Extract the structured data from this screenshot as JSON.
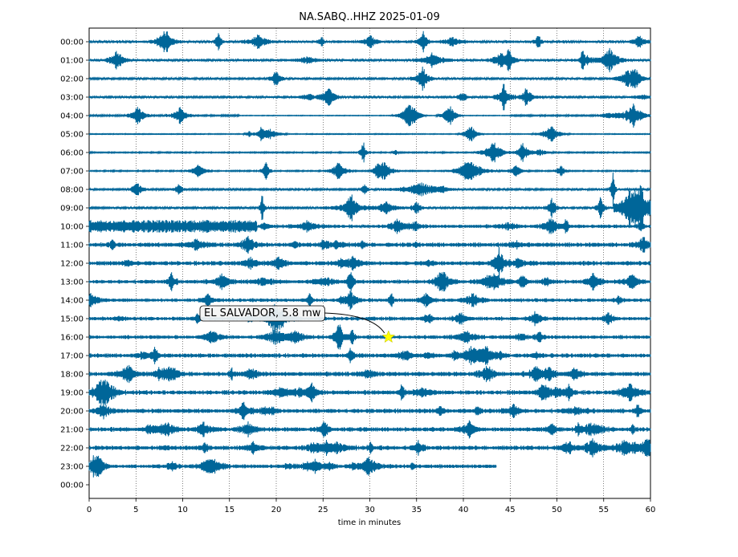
{
  "chart_data": {
    "type": "seismogram-helicorder",
    "title": "NA.SABQ..HHZ 2025-01-09",
    "xlabel": "time in minutes",
    "ylabel": "",
    "xlim": [
      0,
      60
    ],
    "x_ticks": [
      "0",
      "5",
      "10",
      "15",
      "20",
      "25",
      "30",
      "35",
      "40",
      "45",
      "50",
      "55",
      "60"
    ],
    "y_ticks": [
      "00:00",
      "01:00",
      "02:00",
      "03:00",
      "04:00",
      "05:00",
      "06:00",
      "07:00",
      "08:00",
      "09:00",
      "10:00",
      "11:00",
      "12:00",
      "13:00",
      "14:00",
      "15:00",
      "16:00",
      "17:00",
      "18:00",
      "19:00",
      "20:00",
      "21:00",
      "22:00",
      "23:00",
      "00:00"
    ],
    "trace_color": "#006699",
    "grid": "vertical dotted lines every 5 minutes",
    "last_trace_end_minute": 43.5,
    "event": {
      "label": "EL SALVADOR, 5.8 mw",
      "hour_row": "16:00",
      "minute": 32,
      "marker": "star",
      "marker_color": "#ffff00"
    }
  }
}
